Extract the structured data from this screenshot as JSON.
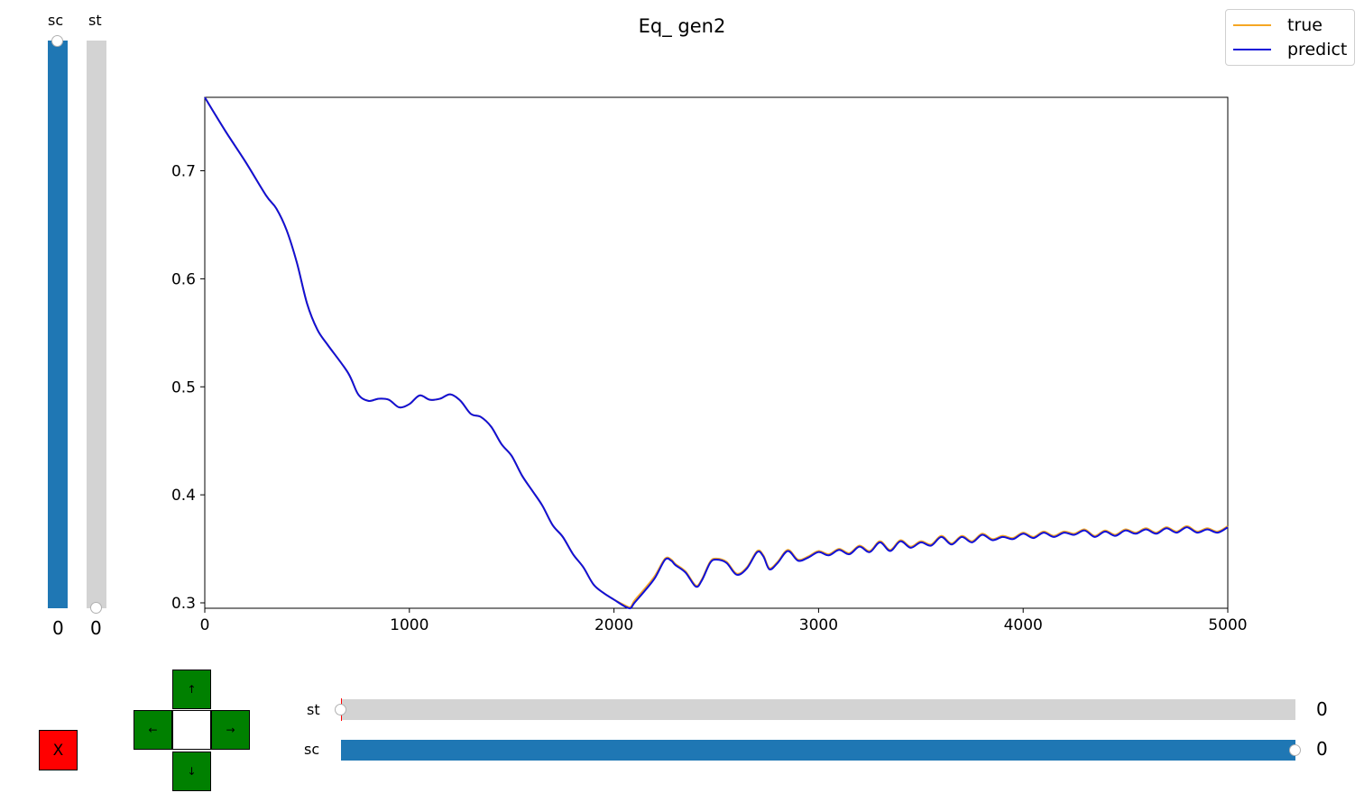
{
  "chart_data": {
    "type": "line",
    "title": "Eq_ gen2",
    "xlabel": "",
    "ylabel": "",
    "xlim": [
      0,
      5000
    ],
    "ylim": [
      0.295,
      0.768
    ],
    "x_ticks": [
      "0",
      "1000",
      "2000",
      "3000",
      "4000",
      "5000"
    ],
    "y_ticks": [
      "0.3",
      "0.4",
      "0.5",
      "0.6",
      "0.7"
    ],
    "legend_position": "top-right",
    "grid": false,
    "series": [
      {
        "name": "true",
        "color": "#f5a623",
        "x": [
          0,
          100,
          200,
          300,
          350,
          400,
          450,
          500,
          550,
          600,
          700,
          750,
          800,
          850,
          900,
          950,
          1000,
          1050,
          1100,
          1150,
          1200,
          1250,
          1300,
          1350,
          1400,
          1450,
          1500,
          1550,
          1600,
          1650,
          1700,
          1750,
          1800,
          1850,
          1900,
          1950,
          2000,
          2050,
          2080,
          2100,
          2150,
          2200,
          2250,
          2280,
          2300,
          2350,
          2400,
          2430,
          2470,
          2500,
          2550,
          2600,
          2650,
          2700,
          2730,
          2760,
          2800,
          2850,
          2900,
          2950,
          3000,
          3050,
          3100,
          3150,
          3200,
          3250,
          3300,
          3350,
          3400,
          3450,
          3500,
          3550,
          3600,
          3650,
          3700,
          3750,
          3800,
          3850,
          3900,
          3950,
          4000,
          4050,
          4100,
          4150,
          4200,
          4250,
          4300,
          4350,
          4400,
          4450,
          4500,
          4550,
          4600,
          4650,
          4700,
          4750,
          4800,
          4850,
          4900,
          4950,
          5000
        ],
        "y": [
          0.768,
          0.737,
          0.708,
          0.677,
          0.665,
          0.645,
          0.615,
          0.577,
          0.553,
          0.539,
          0.513,
          0.493,
          0.487,
          0.489,
          0.488,
          0.481,
          0.484,
          0.492,
          0.488,
          0.489,
          0.493,
          0.487,
          0.475,
          0.472,
          0.463,
          0.447,
          0.436,
          0.418,
          0.404,
          0.39,
          0.372,
          0.361,
          0.345,
          0.333,
          0.317,
          0.309,
          0.303,
          0.298,
          0.296,
          0.302,
          0.313,
          0.325,
          0.341,
          0.34,
          0.336,
          0.329,
          0.316,
          0.322,
          0.338,
          0.341,
          0.338,
          0.327,
          0.333,
          0.348,
          0.344,
          0.332,
          0.338,
          0.349,
          0.34,
          0.343,
          0.348,
          0.345,
          0.35,
          0.346,
          0.353,
          0.348,
          0.357,
          0.349,
          0.358,
          0.352,
          0.357,
          0.354,
          0.362,
          0.355,
          0.362,
          0.357,
          0.364,
          0.359,
          0.362,
          0.36,
          0.365,
          0.361,
          0.366,
          0.362,
          0.366,
          0.364,
          0.368,
          0.362,
          0.367,
          0.363,
          0.368,
          0.365,
          0.369,
          0.365,
          0.37,
          0.366,
          0.371,
          0.366,
          0.369,
          0.366,
          0.371
        ]
      },
      {
        "name": "predict",
        "color": "#1010d8",
        "x": [
          0,
          100,
          200,
          300,
          350,
          400,
          450,
          500,
          550,
          600,
          700,
          750,
          800,
          850,
          900,
          950,
          1000,
          1050,
          1100,
          1150,
          1200,
          1250,
          1300,
          1350,
          1400,
          1450,
          1500,
          1550,
          1600,
          1650,
          1700,
          1750,
          1800,
          1850,
          1900,
          1950,
          2000,
          2050,
          2080,
          2100,
          2150,
          2200,
          2250,
          2280,
          2300,
          2350,
          2400,
          2430,
          2470,
          2500,
          2550,
          2600,
          2650,
          2700,
          2730,
          2760,
          2800,
          2850,
          2900,
          2950,
          3000,
          3050,
          3100,
          3150,
          3200,
          3250,
          3300,
          3350,
          3400,
          3450,
          3500,
          3550,
          3600,
          3650,
          3700,
          3750,
          3800,
          3850,
          3900,
          3950,
          4000,
          4050,
          4100,
          4150,
          4200,
          4250,
          4300,
          4350,
          4400,
          4450,
          4500,
          4550,
          4600,
          4650,
          4700,
          4750,
          4800,
          4850,
          4900,
          4950,
          5000
        ],
        "y": [
          0.768,
          0.737,
          0.708,
          0.677,
          0.665,
          0.645,
          0.615,
          0.577,
          0.553,
          0.539,
          0.513,
          0.493,
          0.487,
          0.489,
          0.488,
          0.481,
          0.484,
          0.492,
          0.488,
          0.489,
          0.493,
          0.487,
          0.475,
          0.472,
          0.463,
          0.447,
          0.436,
          0.418,
          0.404,
          0.39,
          0.372,
          0.361,
          0.345,
          0.333,
          0.317,
          0.309,
          0.303,
          0.297,
          0.295,
          0.3,
          0.311,
          0.323,
          0.34,
          0.339,
          0.335,
          0.328,
          0.315,
          0.321,
          0.337,
          0.34,
          0.337,
          0.326,
          0.332,
          0.347,
          0.343,
          0.331,
          0.337,
          0.348,
          0.339,
          0.342,
          0.347,
          0.344,
          0.349,
          0.345,
          0.352,
          0.347,
          0.356,
          0.348,
          0.357,
          0.351,
          0.356,
          0.353,
          0.361,
          0.354,
          0.361,
          0.356,
          0.363,
          0.358,
          0.361,
          0.359,
          0.364,
          0.36,
          0.365,
          0.361,
          0.365,
          0.363,
          0.367,
          0.361,
          0.366,
          0.362,
          0.367,
          0.364,
          0.368,
          0.364,
          0.369,
          0.365,
          0.37,
          0.365,
          0.368,
          0.365,
          0.37
        ]
      }
    ]
  },
  "sliders": {
    "vertical_sc": {
      "label": "sc",
      "value": "0",
      "color": "#1f77b4"
    },
    "vertical_st": {
      "label": "st",
      "value": "0",
      "color": "#d3d3d3"
    },
    "horizontal_st": {
      "label": "st",
      "value": "0",
      "color": "#d3d3d3"
    },
    "horizontal_sc": {
      "label": "sc",
      "value": "0",
      "color": "#1f77b4"
    }
  },
  "buttons": {
    "reset_label": "X",
    "up_label": "↑",
    "down_label": "↓",
    "left_label": "←",
    "right_label": "→"
  }
}
